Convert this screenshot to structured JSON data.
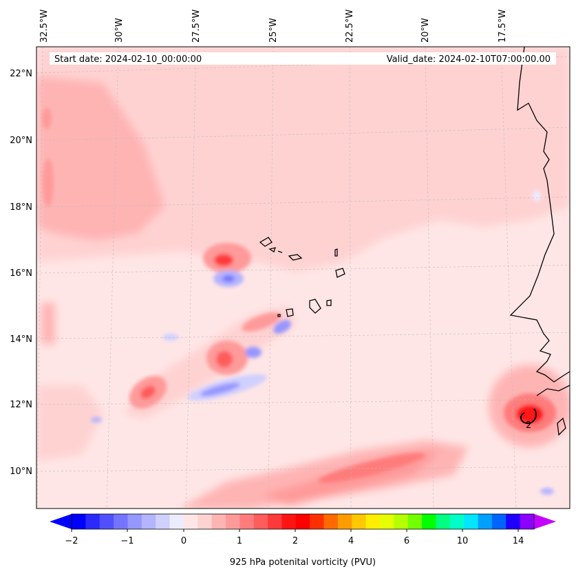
{
  "map": {
    "start_date": "Start date: 2024-02-10_00:00:00",
    "valid_date": "Valid_date: 2024-02-10T07:00:00.00",
    "lon_labels": [
      "32.5°W",
      "30°W",
      "27.5°W",
      "25°W",
      "22.5°W",
      "20°W",
      "17.5°W"
    ],
    "lat_labels": [
      "22°N",
      "20°N",
      "18°N",
      "16°N",
      "14°N",
      "12°N",
      "10°N"
    ],
    "contour_label": "2"
  },
  "colorbar": {
    "title": "925 hPa potenital vorticity (PVU)",
    "tick_labels": [
      "−2",
      "−1",
      "0",
      "1",
      "2",
      "4",
      "6",
      "10",
      "14"
    ],
    "colors": [
      "#0000ff",
      "#2a2aff",
      "#5050ff",
      "#7474ff",
      "#9696ff",
      "#b4b4ff",
      "#d0d0ff",
      "#ececff",
      "#ffe6e6",
      "#ffd2d2",
      "#ffb4b4",
      "#ff9a9a",
      "#ff7c7c",
      "#ff5c5c",
      "#ff3a3a",
      "#ff1414",
      "#ff0000",
      "#ff3000",
      "#ff6a00",
      "#ff9c00",
      "#ffc800",
      "#ffee00",
      "#e6ff00",
      "#b4ff00",
      "#72ff00",
      "#00ff00",
      "#00ff80",
      "#00ffc8",
      "#00e6ff",
      "#00a0ff",
      "#0064ff",
      "#1e00ff",
      "#8c00ff"
    ],
    "under_color": "#0000ff",
    "over_color": "#c400ff"
  }
}
